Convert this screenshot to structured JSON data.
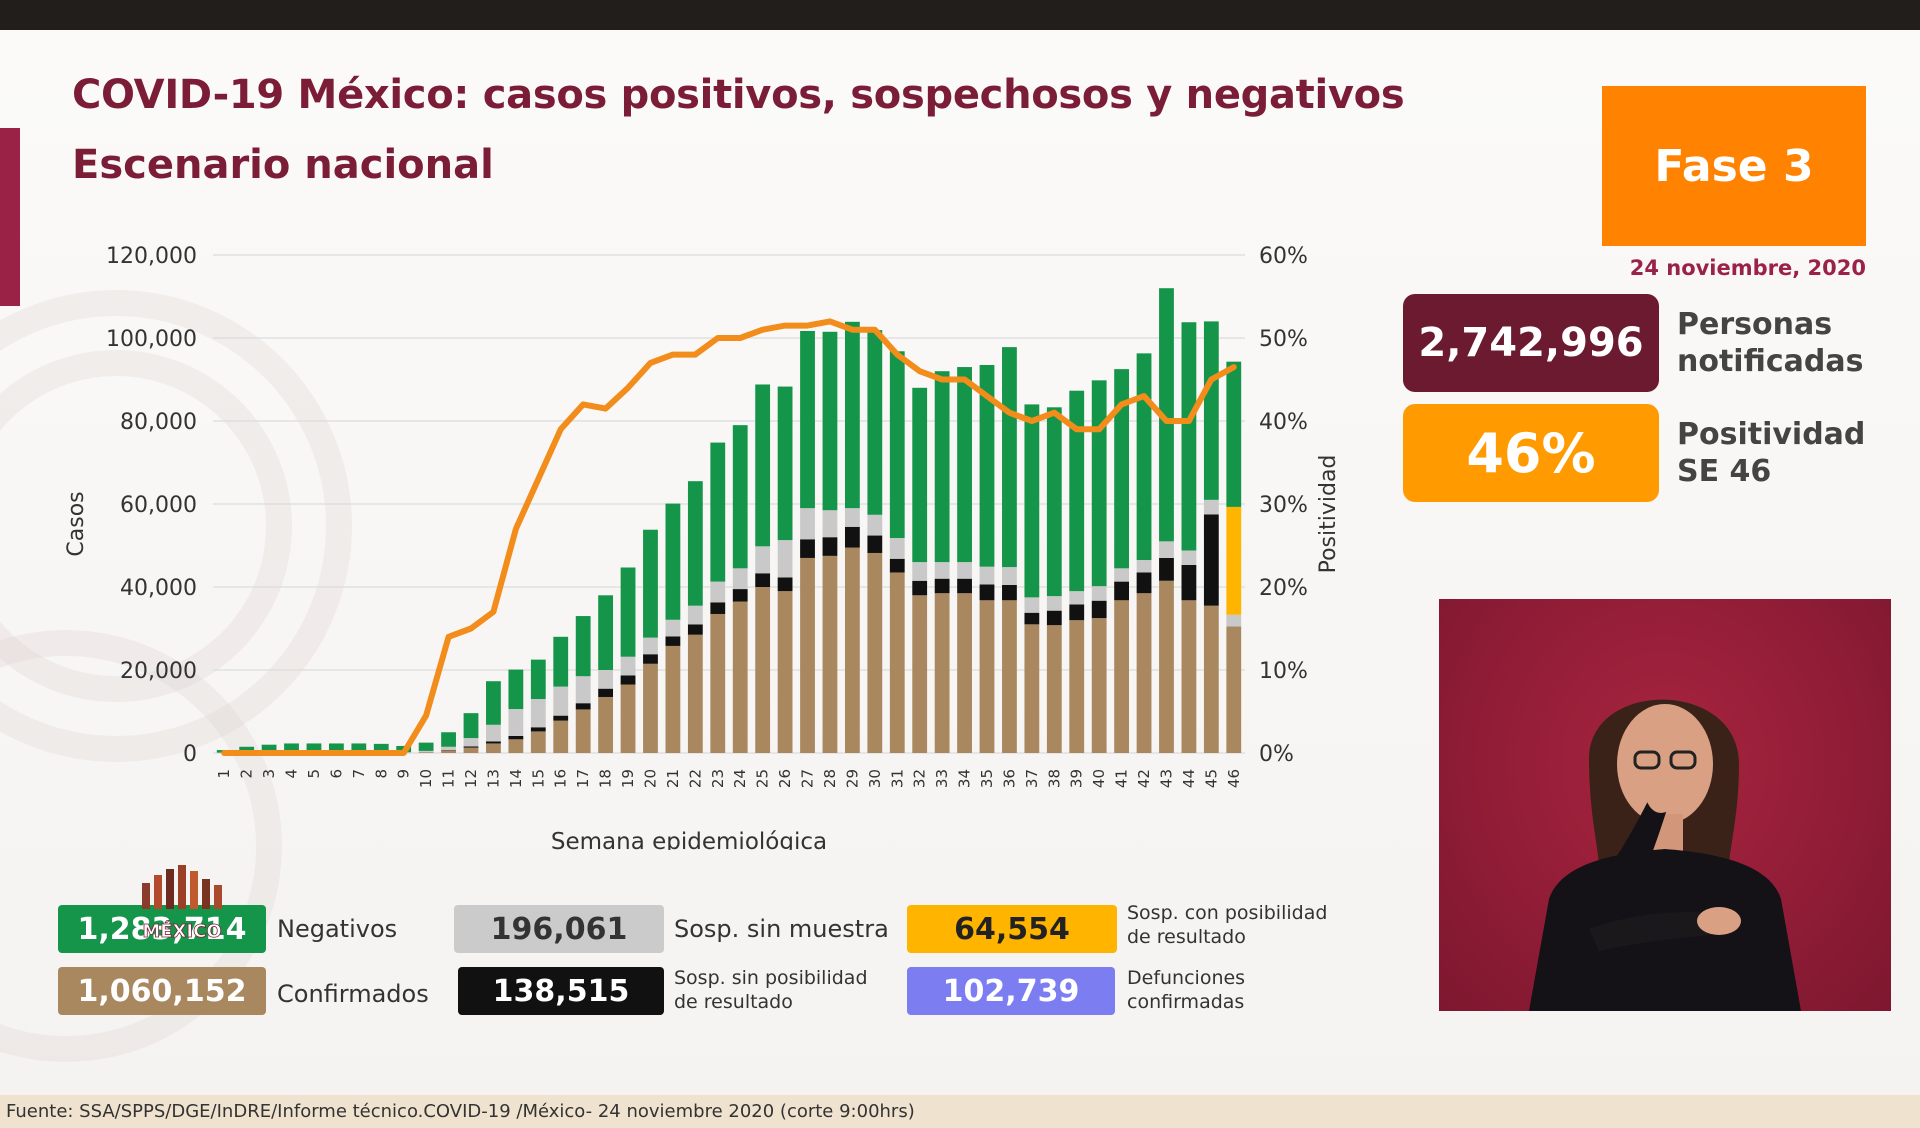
{
  "header": {
    "title": "COVID-19 México: casos positivos, sospechosos y negativos",
    "subtitle": "Escenario nacional"
  },
  "phase_badge": "Fase 3",
  "report_date": "24 noviembre, 2020",
  "kpis": {
    "notified_value": "2,742,996",
    "notified_label": "Personas\nnotificadas",
    "positivity_value": "46%",
    "positivity_label": "Positividad\nSE 46"
  },
  "legend": {
    "negativos_value": "1,283,714",
    "negativos_label": "Negativos",
    "confirmados_value": "1,060,152",
    "confirmados_label": "Confirmados",
    "sin_muestra_value": "196,061",
    "sin_muestra_label": "Sosp. sin muestra",
    "sin_posibilidad_value": "138,515",
    "sin_posibilidad_label": "Sosp. sin posibilidad\nde resultado",
    "con_posibilidad_value": "64,554",
    "con_posibilidad_label": "Sosp. con posibilidad\nde resultado",
    "defunciones_value": "102,739",
    "defunciones_label": "Defunciones\nconfirmadas"
  },
  "logo_text": "MÉXICO",
  "footer": "Fuente: SSA/SPPS/DGE/InDRE/Informe técnico.COVID-19 /México- 24 noviembre 2020 (corte 9:00hrs)",
  "colors": {
    "confirmados": "#a98860",
    "sin_posibilidad": "#111111",
    "sin_muestra": "#c9c9c9",
    "con_posibilidad": "#ffb400",
    "negativos": "#159549",
    "positividad": "#f28c1a",
    "defunciones": "#7d7df2",
    "title": "#7b1d37"
  },
  "chart_data": {
    "type": "bar",
    "stacked": true,
    "xlabel": "Semana epidemiológica",
    "ylabel": "Casos",
    "y2label": "Positividad",
    "ylim": [
      0,
      120000
    ],
    "y2lim": [
      0,
      60
    ],
    "yticks": [
      "0",
      "20,000",
      "40,000",
      "60,000",
      "80,000",
      "100,000",
      "120,000"
    ],
    "y2ticks": [
      "0%",
      "10%",
      "20%",
      "30%",
      "40%",
      "50%",
      "60%"
    ],
    "grid": true,
    "categories": [
      "1",
      "2",
      "3",
      "4",
      "5",
      "6",
      "7",
      "8",
      "9",
      "10",
      "11",
      "12",
      "13",
      "14",
      "15",
      "16",
      "17",
      "18",
      "19",
      "20",
      "21",
      "22",
      "23",
      "24",
      "25",
      "26",
      "27",
      "28",
      "29",
      "30",
      "31",
      "32",
      "33",
      "34",
      "35",
      "36",
      "37",
      "38",
      "39",
      "40",
      "41",
      "42",
      "43",
      "44",
      "45",
      "46"
    ],
    "series": [
      {
        "key": "confirmados",
        "values": [
          0,
          0,
          0,
          0,
          0,
          0,
          0,
          0,
          0,
          200,
          600,
          1300,
          2300,
          3300,
          5200,
          7800,
          10500,
          13500,
          16500,
          21500,
          25800,
          28500,
          33500,
          36500,
          40000,
          39000,
          47000,
          47500,
          49500,
          48200,
          43500,
          38000,
          38500,
          38500,
          36800,
          36800,
          31000,
          30800,
          32000,
          32500,
          36800,
          38500,
          41500,
          36800,
          35500,
          30500
        ]
      },
      {
        "key": "sin_posibilidad",
        "values": [
          0,
          0,
          0,
          0,
          0,
          0,
          0,
          0,
          0,
          0,
          100,
          300,
          500,
          800,
          1000,
          1200,
          1500,
          2000,
          2200,
          2300,
          2300,
          2500,
          2800,
          3000,
          3300,
          3300,
          4500,
          4500,
          5000,
          4200,
          3300,
          3500,
          3500,
          3500,
          3800,
          3700,
          2800,
          3500,
          3800,
          4200,
          4500,
          5000,
          5500,
          8500,
          22000,
          0
        ]
      },
      {
        "key": "sin_muestra",
        "values": [
          100,
          300,
          500,
          500,
          300,
          300,
          300,
          200,
          200,
          300,
          800,
          2000,
          4000,
          6500,
          6800,
          7000,
          6500,
          4500,
          4500,
          4000,
          4000,
          4500,
          5000,
          5000,
          6500,
          9000,
          7500,
          6500,
          4500,
          5000,
          5000,
          4500,
          4000,
          4000,
          4300,
          4300,
          3700,
          3500,
          3200,
          3500,
          3200,
          3000,
          4000,
          3500,
          3500,
          2800
        ]
      },
      {
        "key": "con_posibilidad",
        "values": [
          0,
          0,
          0,
          0,
          0,
          0,
          0,
          0,
          0,
          0,
          0,
          0,
          0,
          0,
          0,
          0,
          0,
          0,
          0,
          0,
          0,
          0,
          0,
          0,
          0,
          0,
          0,
          0,
          0,
          0,
          0,
          0,
          0,
          0,
          0,
          0,
          0,
          0,
          0,
          0,
          0,
          0,
          0,
          0,
          0,
          26000
        ]
      },
      {
        "key": "negativos",
        "values": [
          600,
          1200,
          1500,
          1800,
          2000,
          2000,
          2000,
          2000,
          1500,
          2000,
          3500,
          6000,
          10500,
          9500,
          9500,
          12000,
          14500,
          18000,
          21500,
          26000,
          28000,
          30000,
          33500,
          34500,
          39000,
          37000,
          42700,
          43000,
          44900,
          44500,
          45000,
          42000,
          46000,
          47000,
          48600,
          53000,
          46500,
          45500,
          48300,
          49600,
          48000,
          49800,
          61000,
          55000,
          43000,
          35000
        ]
      }
    ],
    "line": {
      "name": "Positividad",
      "values": [
        0,
        0,
        0,
        0,
        0,
        0,
        0,
        0,
        0,
        4.5,
        14,
        15,
        17,
        27,
        33,
        39,
        42,
        41.5,
        44,
        47,
        48,
        48,
        50,
        50,
        51,
        51.5,
        51.5,
        52,
        51,
        51,
        48,
        46,
        45,
        45,
        43,
        41,
        40,
        41,
        39,
        39,
        42,
        43,
        40,
        40,
        45,
        46.5
      ]
    }
  }
}
